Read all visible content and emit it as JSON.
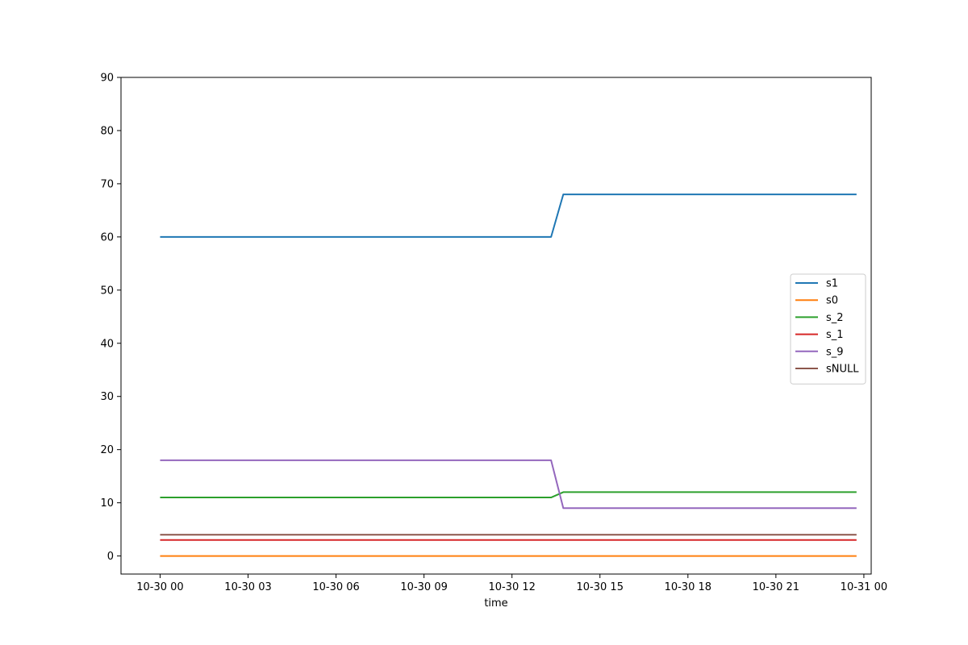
{
  "chart_data": {
    "type": "line",
    "title": "",
    "xlabel": "time",
    "ylabel": "",
    "x": [
      "10-30 00:00",
      "10-30 13:20",
      "10-30 13:45",
      "10-30 23:45"
    ],
    "x_range": [
      "10-29 22:40",
      "10-31 00:15"
    ],
    "ylim": [
      -3.4,
      90
    ],
    "xticks": [
      "10-30 00",
      "10-30 03",
      "10-30 06",
      "10-30 09",
      "10-30 12",
      "10-30 15",
      "10-30 18",
      "10-30 21",
      "10-31 00"
    ],
    "yticks": [
      0,
      10,
      20,
      30,
      40,
      50,
      60,
      70,
      80,
      90
    ],
    "grid": false,
    "legend_position": "center-right",
    "series": [
      {
        "name": "s1",
        "color": "#1f77b4",
        "values": [
          60,
          60,
          68,
          68
        ]
      },
      {
        "name": "s0",
        "color": "#ff7f0e",
        "values": [
          0,
          0,
          0,
          0
        ]
      },
      {
        "name": "s_2",
        "color": "#2ca02c",
        "values": [
          11,
          11,
          12,
          12
        ]
      },
      {
        "name": "s_1",
        "color": "#d62728",
        "values": [
          3,
          3,
          3,
          3
        ]
      },
      {
        "name": "s_9",
        "color": "#9467bd",
        "values": [
          18,
          18,
          9,
          9
        ]
      },
      {
        "name": "sNULL",
        "color": "#8c564b",
        "values": [
          4,
          4,
          4,
          4
        ]
      }
    ]
  }
}
